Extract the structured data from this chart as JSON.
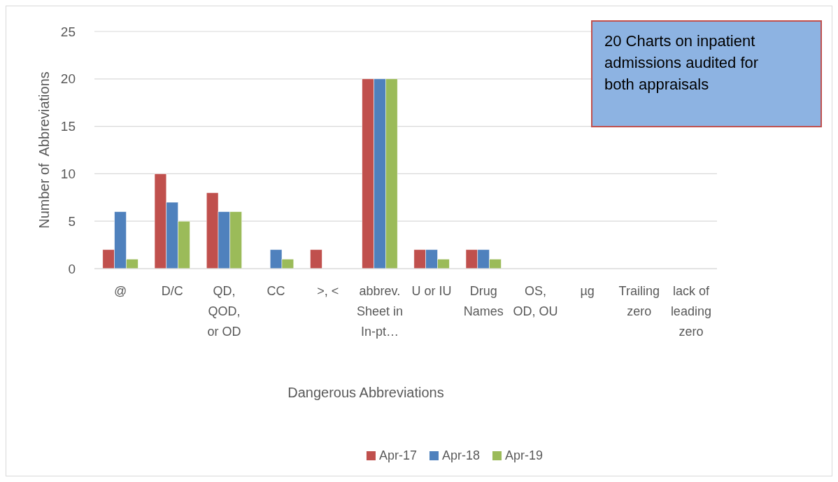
{
  "chart_data": {
    "type": "bar",
    "xlabel": "Dangerous Abbreviations",
    "ylabel": "Number of  Abbreviations",
    "categories": [
      "@",
      "D/C",
      "QD, QOD, or OD",
      "CC",
      ">, <",
      "abbrev. Sheet in In-pt…",
      "U or IU",
      "Drug Names",
      "OS, OD, OU",
      "µg",
      "Trailing zero",
      "lack of leading zero"
    ],
    "series": [
      {
        "name": "Apr-17",
        "color": "#c0504d",
        "values": [
          2,
          10,
          8,
          0,
          2,
          20,
          2,
          2,
          0,
          0,
          0,
          0
        ]
      },
      {
        "name": "Apr-18",
        "color": "#4f81bd",
        "values": [
          6,
          7,
          6,
          2,
          0,
          20,
          2,
          2,
          0,
          0,
          0,
          0
        ]
      },
      {
        "name": "Apr-19",
        "color": "#9bbb59",
        "values": [
          1,
          5,
          6,
          1,
          0,
          20,
          1,
          1,
          0,
          0,
          0,
          0
        ]
      }
    ],
    "ylim": [
      0,
      25
    ],
    "yticks": [
      0,
      5,
      10,
      15,
      20,
      25
    ],
    "grid": "y",
    "legend": "bottom",
    "annotations": [
      "20 Charts on  inpatient admissions  audited for both appraisals"
    ]
  }
}
